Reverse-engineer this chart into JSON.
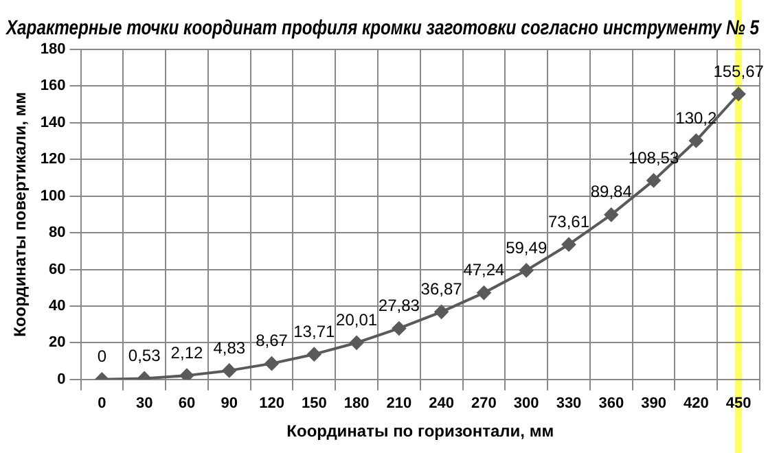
{
  "chart_data": {
    "type": "line",
    "title": "Характерные точки координат профиля кромки заготовки согласно инструменту № 5",
    "xlabel": "Координаты по горизонтали, мм",
    "ylabel": "Координаты повертикали, мм",
    "categories": [
      "0",
      "30",
      "60",
      "90",
      "120",
      "150",
      "180",
      "210",
      "240",
      "270",
      "300",
      "330",
      "360",
      "390",
      "420",
      "450"
    ],
    "series": [
      {
        "color": "#5a5a5a",
        "values": [
          0,
          0.53,
          2.12,
          4.83,
          8.67,
          13.71,
          20.01,
          27.83,
          36.87,
          47.24,
          59.49,
          73.61,
          89.84,
          108.53,
          130.2,
          155.67
        ],
        "value_labels": [
          "0",
          "0,53",
          "2,12",
          "4,83",
          "8,67",
          "13,71",
          "20,01",
          "27,83",
          "36,87",
          "47,24",
          "59,49",
          "73,61",
          "89,84",
          "108,53",
          "130,2",
          "155,67"
        ]
      }
    ],
    "ylim": [
      0,
      180
    ],
    "yticks": [
      0,
      20,
      40,
      60,
      80,
      100,
      120,
      140,
      160,
      180
    ],
    "grid": true,
    "legend": false,
    "marker": "diamond",
    "line_style": "solid",
    "ref_lines": [
      {
        "axis": "x",
        "value": "450",
        "color": "#ffff66"
      }
    ]
  }
}
